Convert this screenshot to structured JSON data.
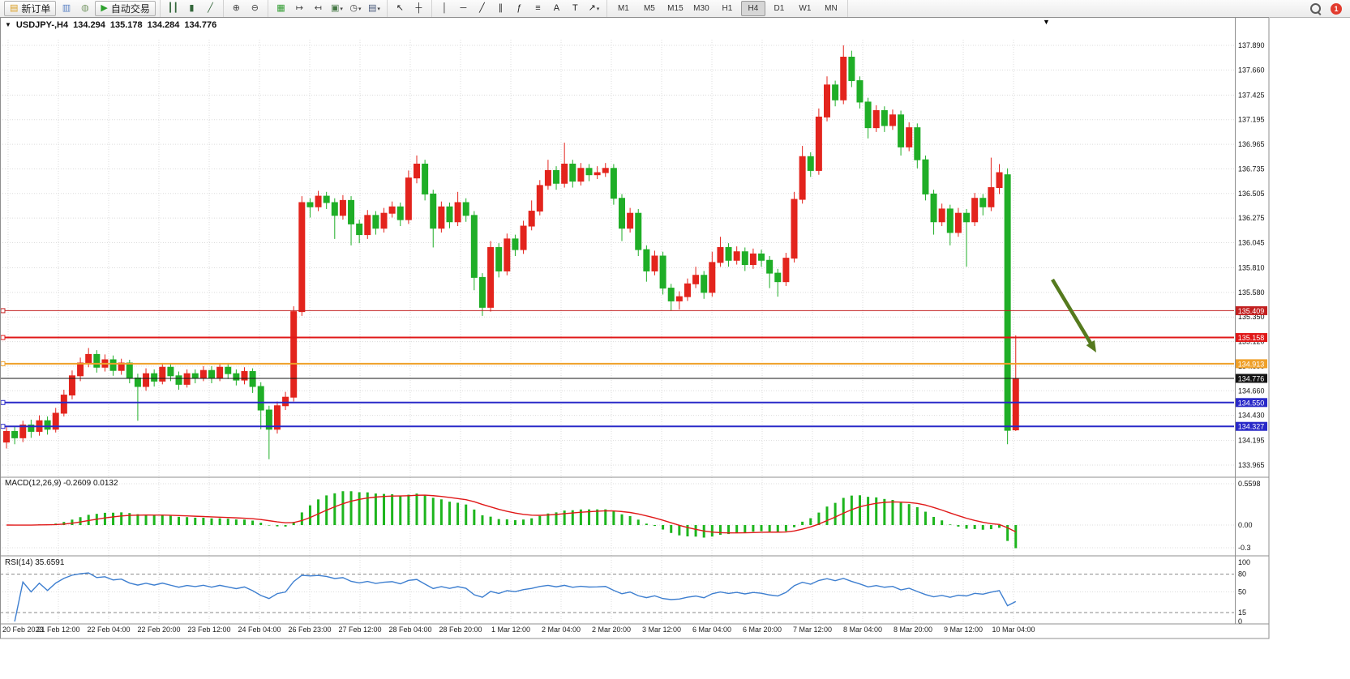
{
  "icons": {
    "triangle_down": "▼",
    "dropdown_caret": "▾"
  },
  "toolbar": {
    "groups": [
      {
        "name": "trade-group",
        "items": [
          {
            "name": "new-order-button",
            "glyph": "▤",
            "color": "#d99c1f",
            "label": "新订单",
            "boxed": true
          },
          {
            "name": "charts-window-button",
            "glyph": "▥",
            "color": "#5b82c4"
          },
          {
            "name": "signals-button",
            "glyph": "◍",
            "color": "#7a9a6a"
          },
          {
            "name": "autotrading-button",
            "glyph": "▶",
            "color": "#2ca02c",
            "label": "自动交易",
            "boxed": true
          }
        ]
      },
      {
        "name": "chart-type-group",
        "items": [
          {
            "name": "bar-chart-button",
            "glyph": "┃┃",
            "color": "#33663a"
          },
          {
            "name": "candlestick-chart-button",
            "glyph": "▮",
            "color": "#33663a"
          },
          {
            "name": "line-chart-button",
            "glyph": "╱",
            "color": "#33663a"
          }
        ]
      },
      {
        "name": "zoom-group",
        "items": [
          {
            "name": "zoom-in-button",
            "glyph": "⊕",
            "color": "#444444"
          },
          {
            "name": "zoom-out-button",
            "glyph": "⊖",
            "color": "#444444"
          }
        ]
      },
      {
        "name": "window-group",
        "items": [
          {
            "name": "tile-windows-button",
            "glyph": "▦",
            "color": "#2e9b2e"
          },
          {
            "name": "auto-scroll-button",
            "glyph": "↦",
            "color": "#444444"
          },
          {
            "name": "chart-shift-button",
            "glyph": "↤",
            "color": "#444444"
          },
          {
            "name": "new-chart-button",
            "glyph": "▣",
            "color": "#447744",
            "dropdown": true
          },
          {
            "name": "periods-button",
            "glyph": "◷",
            "color": "#444444",
            "dropdown": true
          },
          {
            "name": "templates-button",
            "glyph": "▤",
            "color": "#445577",
            "dropdown": true
          }
        ]
      },
      {
        "name": "cursor-group",
        "items": [
          {
            "name": "cursor-button",
            "glyph": "↖",
            "color": "#222222"
          },
          {
            "name": "crosshair-button",
            "glyph": "┼",
            "color": "#222222"
          }
        ]
      },
      {
        "name": "drawing-group",
        "items": [
          {
            "name": "vertical-line-button",
            "glyph": "│",
            "color": "#222222"
          },
          {
            "name": "horizontal-line-button",
            "glyph": "─",
            "color": "#222222"
          },
          {
            "name": "trendline-button",
            "glyph": "╱",
            "color": "#222222"
          },
          {
            "name": "channel-button",
            "glyph": "∥",
            "color": "#222222"
          },
          {
            "name": "fibonacci-button",
            "glyph": "ƒ",
            "color": "#222222"
          },
          {
            "name": "cycle-lines-button",
            "glyph": "≡",
            "color": "#222222"
          },
          {
            "name": "text-button",
            "glyph": "A",
            "color": "#222222"
          },
          {
            "name": "label-button",
            "glyph": "T",
            "color": "#222222"
          },
          {
            "name": "arrows-button",
            "glyph": "↗",
            "color": "#222222",
            "dropdown": true
          }
        ]
      }
    ],
    "timeframes": {
      "items": [
        "M1",
        "M5",
        "M15",
        "M30",
        "H1",
        "H4",
        "D1",
        "W1",
        "MN"
      ],
      "active": "H4"
    },
    "notification": {
      "count": "1"
    }
  },
  "chart_title": {
    "symbol_period": "USDJPY-,H4",
    "open": "134.294",
    "high": "135.178",
    "low": "134.284",
    "close": "134.776"
  },
  "indicators": {
    "macd": {
      "label": "MACD(12,26,9) -0.2609 0.0132",
      "fast": 12,
      "slow": 26,
      "signal": 9,
      "histogram_color": "#1db51d",
      "signal_color": "#e01818",
      "scale": [
        "0.5598",
        "0.00",
        "-0.3"
      ]
    },
    "rsi": {
      "label": "RSI(14) 35.6591",
      "period": 14,
      "color": "#3e7fd0",
      "scale": [
        "100",
        "80",
        "50",
        "15",
        "0"
      ],
      "levels": [
        80,
        50,
        15
      ]
    }
  },
  "chart_data": {
    "type": "candlestick",
    "symbol": "USDJPY-",
    "timeframe": "H4",
    "up_color": "#e3241d",
    "down_color": "#1fae27",
    "x_ticks": [
      "20 Feb 2023",
      "21 Feb 12:00",
      "22 Feb 04:00",
      "22 Feb 20:00",
      "23 Feb 12:00",
      "24 Feb 04:00",
      "26 Feb 23:00",
      "27 Feb 12:00",
      "28 Feb 04:00",
      "28 Feb 20:00",
      "1 Mar 12:00",
      "2 Mar 04:00",
      "2 Mar 20:00",
      "3 Mar 12:00",
      "6 Mar 04:00",
      "6 Mar 20:00",
      "7 Mar 12:00",
      "8 Mar 04:00",
      "8 Mar 20:00",
      "9 Mar 12:00",
      "10 Mar 04:00"
    ],
    "y_ticks": [
      "137.890",
      "137.660",
      "137.425",
      "137.195",
      "136.965",
      "136.735",
      "136.505",
      "136.275",
      "136.045",
      "135.810",
      "135.580",
      "135.350",
      "135.120",
      "134.890",
      "134.660",
      "134.430",
      "134.195",
      "133.965"
    ],
    "ohlc": [
      [
        134.18,
        134.32,
        134.12,
        134.28
      ],
      [
        134.28,
        134.33,
        134.16,
        134.22
      ],
      [
        134.22,
        134.38,
        134.18,
        134.34
      ],
      [
        134.34,
        134.39,
        134.22,
        134.28
      ],
      [
        134.28,
        134.43,
        134.24,
        134.38
      ],
      [
        134.38,
        134.42,
        134.25,
        134.3
      ],
      [
        134.3,
        134.5,
        134.27,
        134.45
      ],
      [
        134.45,
        134.67,
        134.42,
        134.62
      ],
      [
        134.62,
        134.85,
        134.58,
        134.8
      ],
      [
        134.8,
        134.97,
        134.75,
        134.92
      ],
      [
        134.92,
        135.06,
        134.88,
        135.0
      ],
      [
        135.0,
        135.04,
        134.83,
        134.88
      ],
      [
        134.88,
        135.0,
        134.84,
        134.95
      ],
      [
        134.95,
        134.99,
        134.8,
        134.85
      ],
      [
        134.85,
        134.96,
        134.81,
        134.92
      ],
      [
        134.92,
        134.95,
        134.73,
        134.78
      ],
      [
        134.78,
        134.82,
        134.38,
        134.7
      ],
      [
        134.7,
        134.87,
        134.66,
        134.82
      ],
      [
        134.82,
        134.86,
        134.7,
        134.75
      ],
      [
        134.75,
        134.92,
        134.72,
        134.88
      ],
      [
        134.88,
        134.92,
        134.75,
        134.8
      ],
      [
        134.8,
        134.84,
        134.67,
        134.72
      ],
      [
        134.72,
        134.86,
        134.69,
        134.82
      ],
      [
        134.82,
        134.86,
        134.73,
        134.78
      ],
      [
        134.78,
        134.89,
        134.75,
        134.85
      ],
      [
        134.85,
        134.89,
        134.73,
        134.78
      ],
      [
        134.78,
        134.92,
        134.75,
        134.88
      ],
      [
        134.88,
        134.92,
        134.77,
        134.82
      ],
      [
        134.82,
        134.86,
        134.71,
        134.76
      ],
      [
        134.76,
        134.88,
        134.72,
        134.84
      ],
      [
        134.84,
        134.87,
        134.64,
        134.7
      ],
      [
        134.7,
        134.74,
        134.3,
        134.48
      ],
      [
        134.48,
        134.52,
        134.02,
        134.3
      ],
      [
        134.3,
        134.56,
        134.26,
        134.52
      ],
      [
        134.52,
        134.65,
        134.48,
        134.6
      ],
      [
        134.6,
        135.45,
        134.56,
        135.4
      ],
      [
        135.4,
        136.48,
        135.36,
        136.42
      ],
      [
        136.42,
        136.46,
        136.28,
        136.38
      ],
      [
        136.38,
        136.53,
        136.34,
        136.48
      ],
      [
        136.48,
        136.52,
        136.36,
        136.42
      ],
      [
        136.42,
        136.46,
        136.08,
        136.3
      ],
      [
        136.3,
        136.49,
        136.26,
        136.44
      ],
      [
        136.44,
        136.48,
        136.02,
        136.22
      ],
      [
        136.22,
        136.26,
        136.04,
        136.12
      ],
      [
        136.12,
        136.35,
        136.08,
        136.3
      ],
      [
        136.3,
        136.34,
        136.12,
        136.18
      ],
      [
        136.18,
        136.37,
        136.14,
        136.32
      ],
      [
        136.32,
        136.43,
        136.28,
        136.38
      ],
      [
        136.38,
        136.42,
        136.2,
        136.26
      ],
      [
        136.26,
        136.72,
        136.22,
        136.65
      ],
      [
        136.65,
        136.86,
        136.6,
        136.78
      ],
      [
        136.78,
        136.82,
        136.44,
        136.5
      ],
      [
        136.5,
        136.54,
        136.0,
        136.18
      ],
      [
        136.18,
        136.43,
        136.14,
        136.38
      ],
      [
        136.38,
        136.42,
        136.18,
        136.24
      ],
      [
        136.24,
        136.52,
        136.2,
        136.42
      ],
      [
        136.42,
        136.46,
        136.24,
        136.3
      ],
      [
        136.3,
        136.34,
        135.6,
        135.72
      ],
      [
        135.72,
        135.76,
        135.36,
        135.44
      ],
      [
        135.44,
        136.06,
        135.4,
        136.0
      ],
      [
        136.0,
        136.04,
        135.72,
        135.78
      ],
      [
        135.78,
        136.13,
        135.74,
        136.08
      ],
      [
        136.08,
        136.12,
        135.92,
        135.98
      ],
      [
        135.98,
        136.25,
        135.94,
        136.2
      ],
      [
        136.2,
        136.44,
        136.16,
        136.34
      ],
      [
        136.34,
        136.63,
        136.3,
        136.58
      ],
      [
        136.58,
        136.82,
        136.54,
        136.72
      ],
      [
        136.72,
        136.76,
        136.54,
        136.6
      ],
      [
        136.6,
        136.98,
        136.56,
        136.78
      ],
      [
        136.78,
        136.82,
        136.56,
        136.62
      ],
      [
        136.62,
        136.79,
        136.58,
        136.74
      ],
      [
        136.74,
        136.78,
        136.62,
        136.68
      ],
      [
        136.68,
        136.76,
        136.64,
        136.7
      ],
      [
        136.7,
        136.79,
        136.66,
        136.74
      ],
      [
        136.74,
        136.78,
        136.4,
        136.46
      ],
      [
        136.46,
        136.5,
        136.06,
        136.18
      ],
      [
        136.18,
        136.37,
        136.14,
        136.32
      ],
      [
        136.32,
        136.36,
        135.92,
        135.98
      ],
      [
        135.98,
        136.02,
        135.68,
        135.78
      ],
      [
        135.78,
        135.97,
        135.74,
        135.92
      ],
      [
        135.92,
        135.96,
        135.56,
        135.62
      ],
      [
        135.62,
        135.66,
        135.41,
        135.5
      ],
      [
        135.5,
        135.59,
        135.42,
        135.54
      ],
      [
        135.54,
        135.71,
        135.5,
        135.66
      ],
      [
        135.66,
        135.82,
        135.62,
        135.74
      ],
      [
        135.74,
        135.78,
        135.52,
        135.58
      ],
      [
        135.58,
        135.96,
        135.54,
        135.86
      ],
      [
        135.86,
        136.1,
        135.82,
        136.0
      ],
      [
        136.0,
        136.04,
        135.82,
        135.88
      ],
      [
        135.88,
        136.01,
        135.84,
        135.96
      ],
      [
        135.96,
        136.0,
        135.78,
        135.84
      ],
      [
        135.84,
        135.99,
        135.8,
        135.94
      ],
      [
        135.94,
        135.98,
        135.82,
        135.88
      ],
      [
        135.88,
        135.92,
        135.62,
        135.76
      ],
      [
        135.76,
        135.8,
        135.54,
        135.68
      ],
      [
        135.68,
        135.95,
        135.64,
        135.9
      ],
      [
        135.9,
        136.52,
        135.86,
        136.45
      ],
      [
        136.45,
        136.95,
        136.41,
        136.85
      ],
      [
        136.85,
        136.89,
        136.66,
        136.72
      ],
      [
        136.72,
        137.3,
        136.68,
        137.22
      ],
      [
        137.22,
        137.6,
        137.18,
        137.52
      ],
      [
        137.52,
        137.56,
        137.32,
        137.38
      ],
      [
        137.38,
        137.89,
        137.34,
        137.78
      ],
      [
        137.78,
        137.84,
        137.5,
        137.56
      ],
      [
        137.56,
        137.6,
        137.3,
        137.36
      ],
      [
        137.36,
        137.4,
        137.02,
        137.12
      ],
      [
        137.12,
        137.33,
        137.08,
        137.28
      ],
      [
        137.28,
        137.32,
        137.08,
        137.14
      ],
      [
        137.14,
        137.29,
        137.1,
        137.24
      ],
      [
        137.24,
        137.28,
        136.86,
        136.94
      ],
      [
        136.94,
        137.17,
        136.9,
        137.12
      ],
      [
        137.12,
        137.16,
        136.74,
        136.82
      ],
      [
        136.82,
        136.86,
        136.44,
        136.5
      ],
      [
        136.5,
        136.54,
        136.12,
        136.24
      ],
      [
        136.24,
        136.41,
        136.2,
        136.36
      ],
      [
        136.36,
        136.4,
        136.02,
        136.14
      ],
      [
        136.14,
        136.37,
        136.1,
        136.32
      ],
      [
        136.32,
        136.36,
        135.82,
        136.24
      ],
      [
        136.24,
        136.51,
        136.2,
        136.46
      ],
      [
        136.46,
        136.5,
        136.3,
        136.38
      ],
      [
        136.38,
        136.84,
        136.34,
        136.56
      ],
      [
        136.56,
        136.78,
        136.5,
        136.7
      ],
      [
        136.68,
        136.74,
        134.16,
        134.29
      ],
      [
        134.294,
        135.178,
        134.284,
        134.776
      ]
    ],
    "hlines": [
      {
        "name": "resistance-line-1",
        "price": 135.409,
        "color": "#c22020",
        "width": 1,
        "badge": "135.409"
      },
      {
        "name": "resistance-line-2",
        "price": 135.158,
        "color": "#e01818",
        "width": 2,
        "badge": "135.158"
      },
      {
        "name": "pivot-line",
        "price": 134.913,
        "color": "#efa029",
        "width": 2,
        "badge": "134.913"
      },
      {
        "name": "support-line-1",
        "price": 134.55,
        "color": "#2929c8",
        "width": 2,
        "badge": "134.550"
      },
      {
        "name": "support-line-2",
        "price": 134.327,
        "color": "#2929c8",
        "width": 2,
        "badge": "134.327"
      }
    ],
    "bid_line": {
      "price": 134.776,
      "color": "#141414",
      "badge": "134.776"
    },
    "arrow_annotation": {
      "color": "#557a1e",
      "from": [
        1298,
        324
      ],
      "to": [
        1352,
        414
      ]
    }
  }
}
